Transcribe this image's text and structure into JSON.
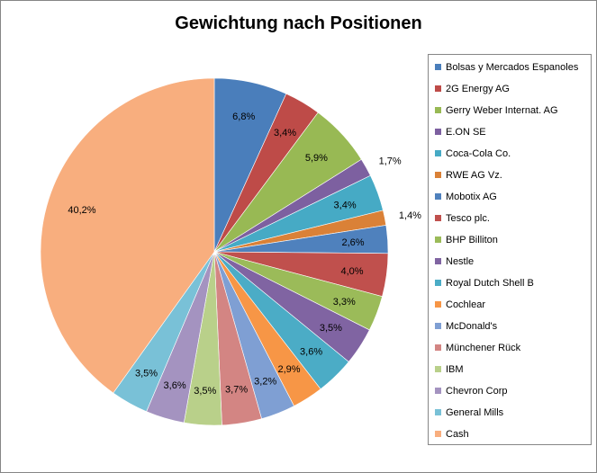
{
  "chart_data": {
    "type": "pie",
    "title": "Gewichtung nach Positionen",
    "legend_position": "right",
    "slices": [
      {
        "label": "Bolsas y Mercados Espanoles",
        "value": 6.8,
        "value_label": "6,8%",
        "color": "#4A7EBB"
      },
      {
        "label": "2G Energy AG",
        "value": 3.4,
        "value_label": "3,4%",
        "color": "#BE4B48"
      },
      {
        "label": "Gerry Weber Internat. AG",
        "value": 5.9,
        "value_label": "5,9%",
        "color": "#98B954"
      },
      {
        "label": "E.ON SE",
        "value": 1.7,
        "value_label": "1,7%",
        "color": "#7D60A0"
      },
      {
        "label": "Coca-Cola Co.",
        "value": 3.4,
        "value_label": "3,4%",
        "color": "#46AAC5"
      },
      {
        "label": "RWE AG Vz.",
        "value": 1.4,
        "value_label": "1,4%",
        "color": "#DA8137"
      },
      {
        "label": "Mobotix AG",
        "value": 2.6,
        "value_label": "2,6%",
        "color": "#4F81BD"
      },
      {
        "label": "Tesco plc.",
        "value": 4.0,
        "value_label": "4,0%",
        "color": "#C0504D"
      },
      {
        "label": "BHP Billiton",
        "value": 3.3,
        "value_label": "3,3%",
        "color": "#9BBB59"
      },
      {
        "label": "Nestle",
        "value": 3.5,
        "value_label": "3,5%",
        "color": "#8064A2"
      },
      {
        "label": "Royal Dutch Shell B",
        "value": 3.6,
        "value_label": "3,6%",
        "color": "#4BACC6"
      },
      {
        "label": "Cochlear",
        "value": 2.9,
        "value_label": "2,9%",
        "color": "#F79646"
      },
      {
        "label": "McDonald's",
        "value": 3.2,
        "value_label": "3,2%",
        "color": "#7F9FD3"
      },
      {
        "label": "Münchener Rück",
        "value": 3.7,
        "value_label": "3,7%",
        "color": "#D38583"
      },
      {
        "label": "IBM",
        "value": 3.5,
        "value_label": "3,5%",
        "color": "#B9D08A"
      },
      {
        "label": "Chevron Corp",
        "value": 3.6,
        "value_label": "3,6%",
        "color": "#A493C0"
      },
      {
        "label": "General Mills",
        "value": 3.5,
        "value_label": "3,5%",
        "color": "#79C1D7"
      },
      {
        "label": "Cash",
        "value": 40.2,
        "value_label": "40,2%",
        "color": "#F8AE7E"
      }
    ]
  }
}
